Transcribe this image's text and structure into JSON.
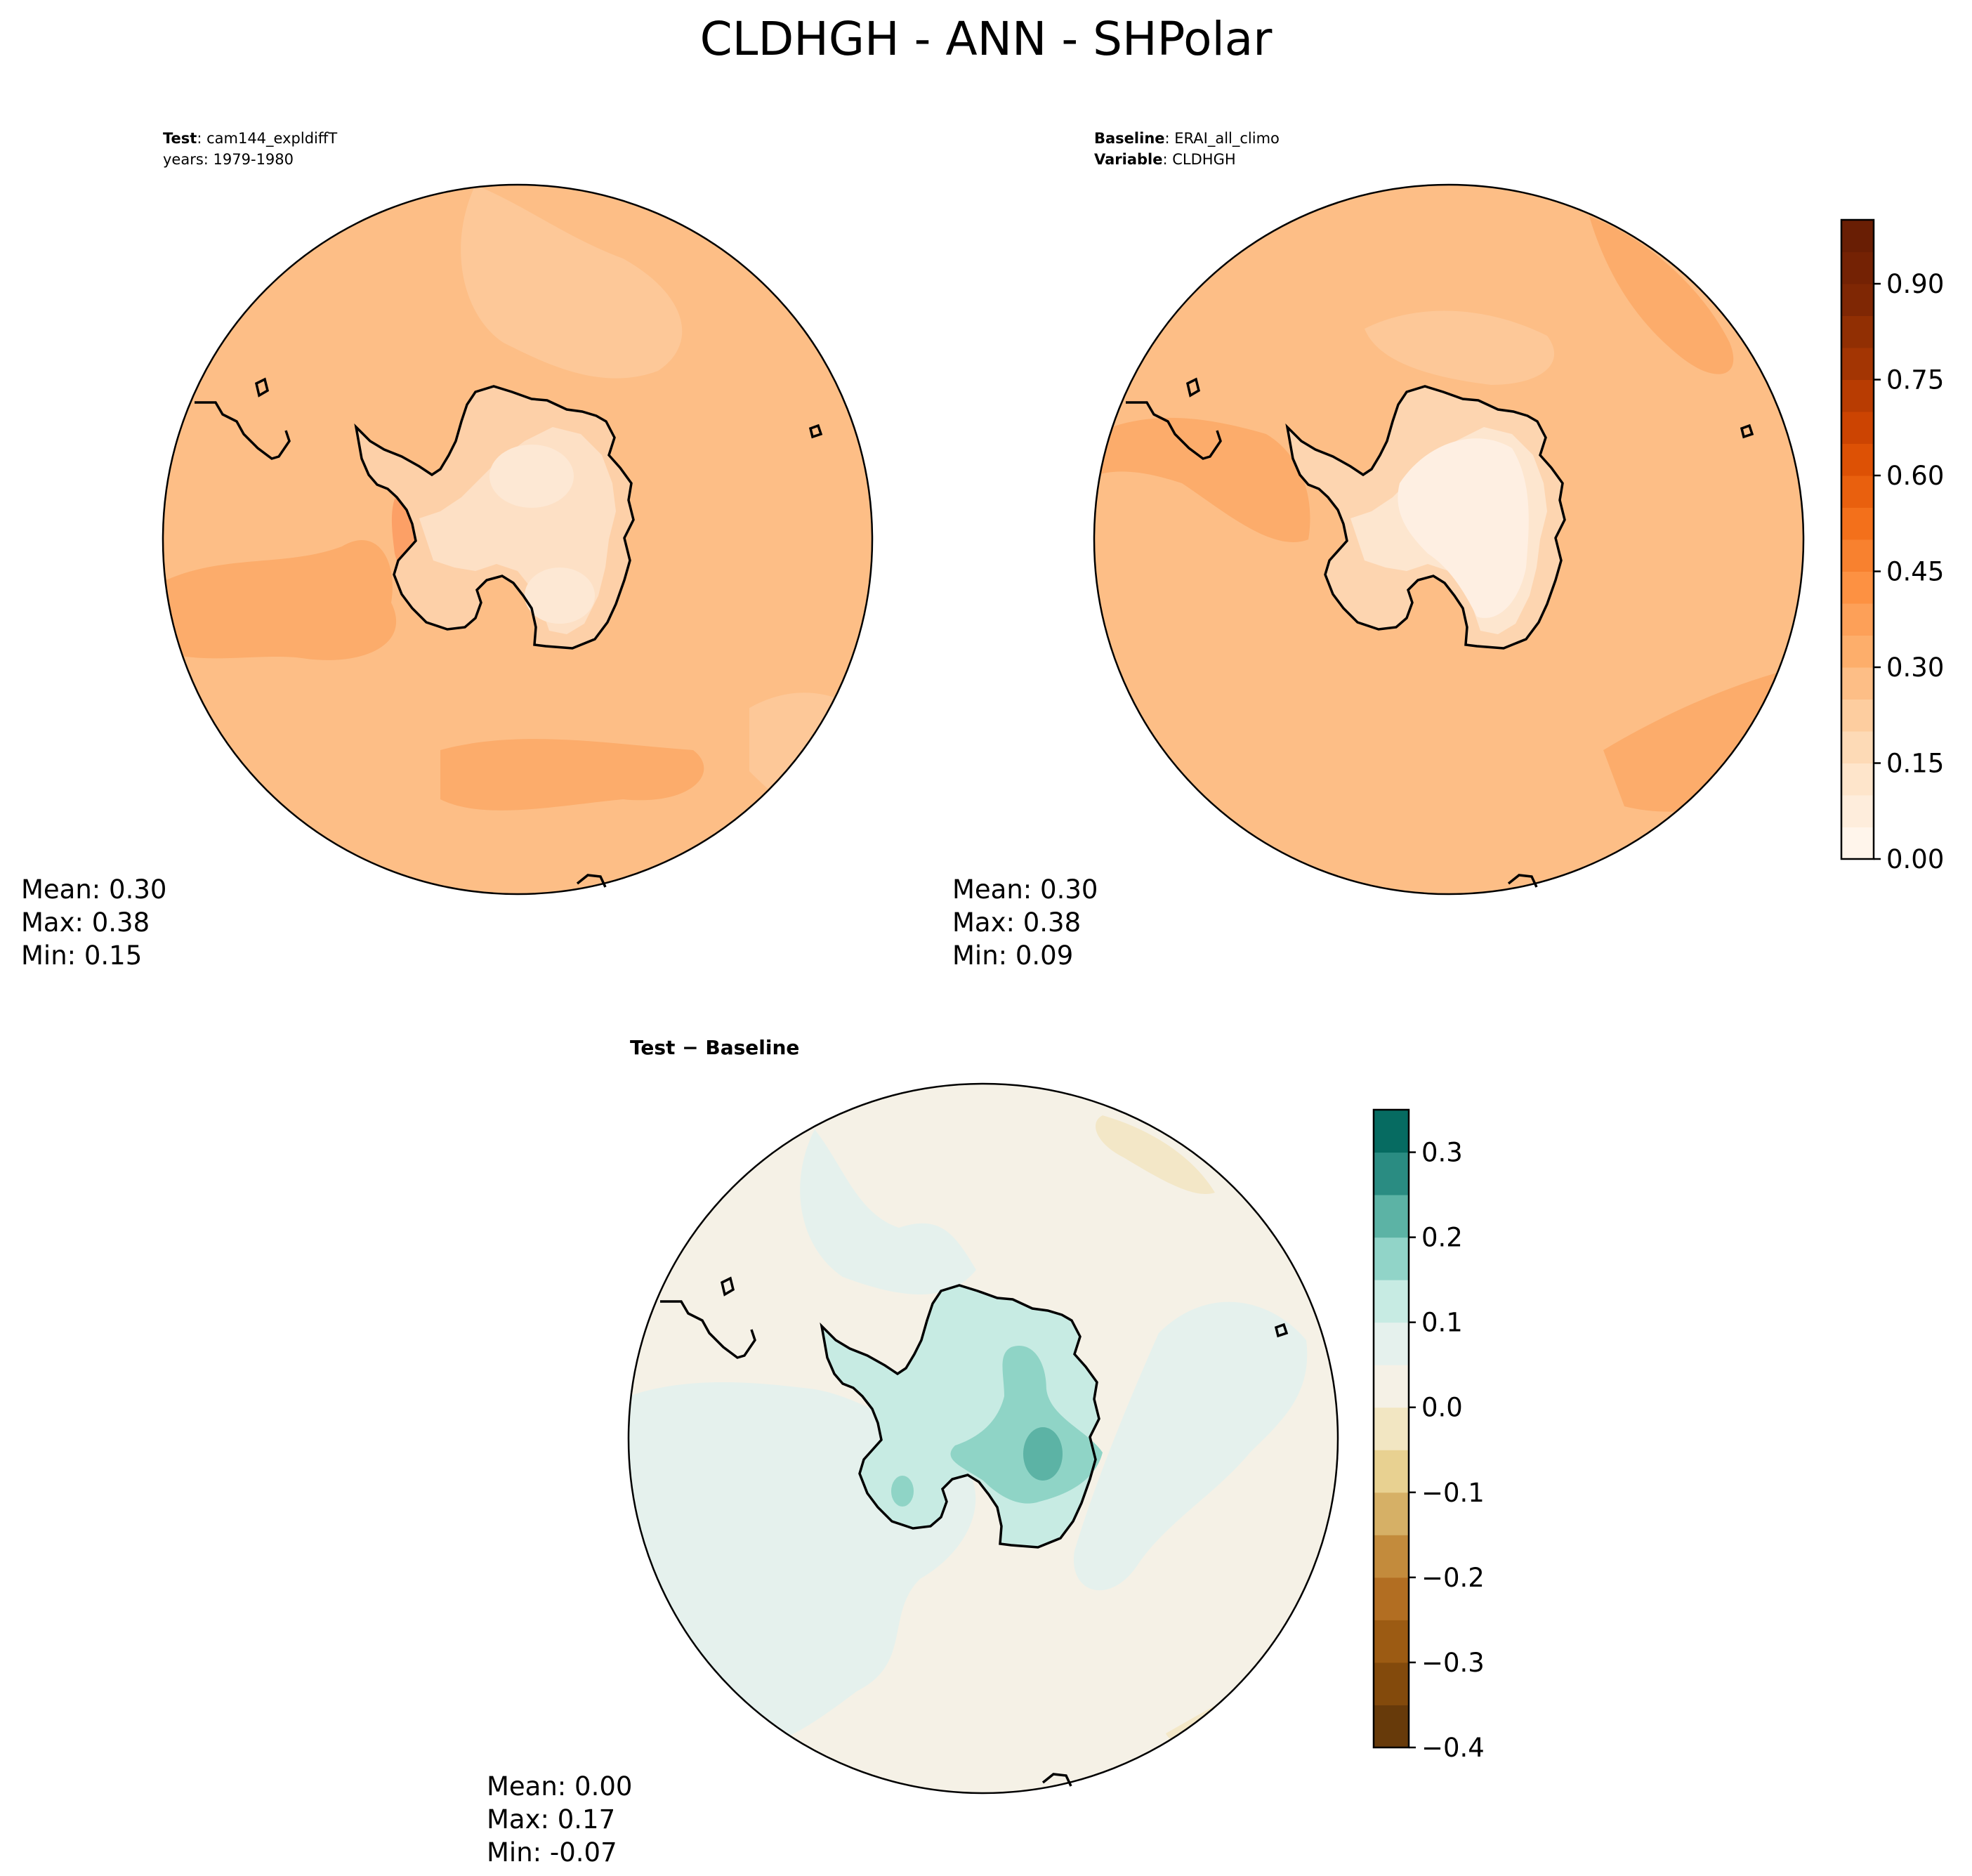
{
  "figure": {
    "title": "CLDHGH - ANN - SHPolar"
  },
  "chart_data": [
    {
      "type": "heatmap",
      "projection": "south-polar-stereographic",
      "panel": "test",
      "header": [
        {
          "bold": "Test",
          "sep": ": ",
          "text": "cam144_expldiffT"
        },
        {
          "bold": "",
          "sep": "",
          "text": "years: 1979-1980"
        }
      ],
      "stats": {
        "mean": "Mean:  0.30",
        "max": "Max:  0.38",
        "min": "Min:  0.15"
      },
      "colors": {
        "ocean": "#fdbe86",
        "ocean_dark": "#fcac6b",
        "ocean_light": "#fdc898",
        "ice": "#fde0c5",
        "ice_light": "#fde8d4",
        "coast": "#ff8f4f"
      }
    },
    {
      "type": "heatmap",
      "projection": "south-polar-stereographic",
      "panel": "baseline",
      "header": [
        {
          "bold": "Baseline",
          "sep": ": ",
          "text": "ERAI_all_climo"
        },
        {
          "bold": "Variable",
          "sep": ": ",
          "text": "CLDHGH"
        }
      ],
      "stats": {
        "mean": "Mean:  0.30",
        "max": "Max:  0.38",
        "min": "Min:  0.09"
      },
      "colors": {
        "ocean": "#fdbe86",
        "ocean_dark": "#fcac6b",
        "ocean_light": "#fdc898",
        "ice": "#fde8d4",
        "ice_light": "#feefe2",
        "coast": "#fda560"
      },
      "colorbar": {
        "range": [
          0.0,
          1.0
        ],
        "ticks": [
          0.0,
          0.15,
          0.3,
          0.45,
          0.6,
          0.75,
          0.9
        ],
        "tick_labels": [
          "0.00",
          "0.15",
          "0.30",
          "0.45",
          "0.60",
          "0.75",
          "0.90"
        ],
        "levels": [
          0.0,
          0.05,
          0.1,
          0.15,
          0.2,
          0.25,
          0.3,
          0.35,
          0.4,
          0.45,
          0.5,
          0.55,
          0.6,
          0.65,
          0.7,
          0.75,
          0.8,
          0.85,
          0.9,
          0.95,
          1.0
        ],
        "colors": [
          "#fff5eb",
          "#feeddc",
          "#fee5cb",
          "#fddab6",
          "#fdcd9f",
          "#fdbe86",
          "#fdae6b",
          "#fda058",
          "#fd9142",
          "#f8812f",
          "#f3701b",
          "#e9600e",
          "#dd5105",
          "#cc4402",
          "#b83c02",
          "#a33503",
          "#912f03",
          "#7f2704",
          "#742204",
          "#691e04"
        ]
      }
    },
    {
      "type": "heatmap",
      "projection": "south-polar-stereographic",
      "panel": "difference",
      "header": [
        {
          "bold": "Test − Baseline",
          "sep": "",
          "text": ""
        }
      ],
      "stats": {
        "mean": "Mean:  0.00",
        "max": "Max:  0.17",
        "min": "Min: -0.07"
      },
      "colors": {
        "ocean": "#f5f1e6",
        "ocean_pos": "#e5f1ed",
        "ice_pos": "#c7ebe3",
        "ice_pos2": "#8fd4c6",
        "ice_pos3": "#5cb3a5",
        "neg": "#f3e7c7"
      },
      "colorbar": {
        "range": [
          -0.4,
          0.35
        ],
        "ticks": [
          -0.4,
          -0.3,
          -0.2,
          -0.1,
          0.0,
          0.1,
          0.2,
          0.3
        ],
        "tick_labels": [
          "−0.4",
          "−0.3",
          "−0.2",
          "−0.1",
          "0.0",
          "0.1",
          "0.2",
          "0.3"
        ],
        "levels": [
          -0.4,
          -0.35,
          -0.3,
          -0.25,
          -0.2,
          -0.15,
          -0.1,
          -0.05,
          0.0,
          0.05,
          0.1,
          0.15,
          0.2,
          0.25,
          0.3,
          0.35
        ],
        "colors": [
          "#673a0a",
          "#834a0c",
          "#9c5b13",
          "#b26e22",
          "#c38b3c",
          "#d6b066",
          "#e8d191",
          "#f2e6c2",
          "#f5f1e6",
          "#e5f1ed",
          "#c7ebe3",
          "#91d4c8",
          "#5cb3a5",
          "#2a8c82",
          "#066b61",
          "#004f44"
        ]
      }
    }
  ]
}
